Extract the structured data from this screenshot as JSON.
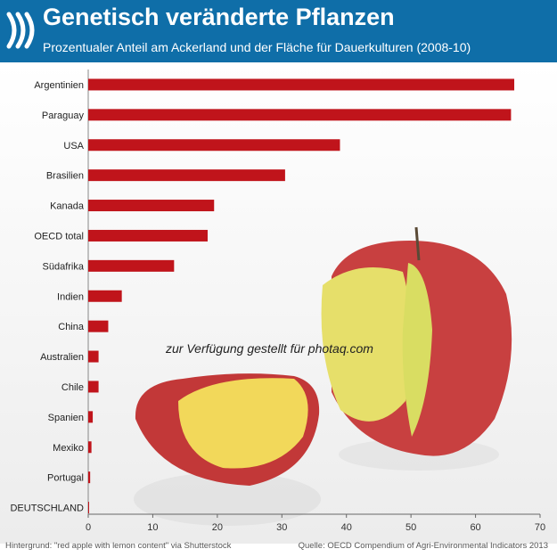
{
  "header": {
    "title": "Genetisch veränderte Pflanzen",
    "subtitle": "Prozentualer Anteil am Ackerland und der Fläche für Dauerkulturen (2008-10)"
  },
  "colors": {
    "header_bg": "#0f6ea8",
    "bar": "#c0141b"
  },
  "watermark": "zur Verfügung gestellt für photaq.com",
  "footer": {
    "left": "Hintergrund: \"red apple with lemon content\" via Shutterstock",
    "right": "Quelle: OECD Compendium of Agri-Environmental Indicators 2013"
  },
  "chart_data": {
    "type": "bar",
    "orientation": "horizontal",
    "categories": [
      "Argentinien",
      "Paraguay",
      "USA",
      "Brasilien",
      "Kanada",
      "OECD total",
      "Südafrika",
      "Indien",
      "China",
      "Australien",
      "Chile",
      "Spanien",
      "Mexiko",
      "Portugal",
      "DEUTSCHLAND"
    ],
    "values": [
      66,
      65.5,
      39,
      30.5,
      19.5,
      18.5,
      13.3,
      5.2,
      3.1,
      1.6,
      1.6,
      0.7,
      0.5,
      0.3,
      0.1
    ],
    "xlim": [
      0,
      70
    ],
    "xticks": [
      0,
      10,
      20,
      30,
      40,
      50,
      60,
      70
    ],
    "grid": false,
    "legend": "none"
  }
}
